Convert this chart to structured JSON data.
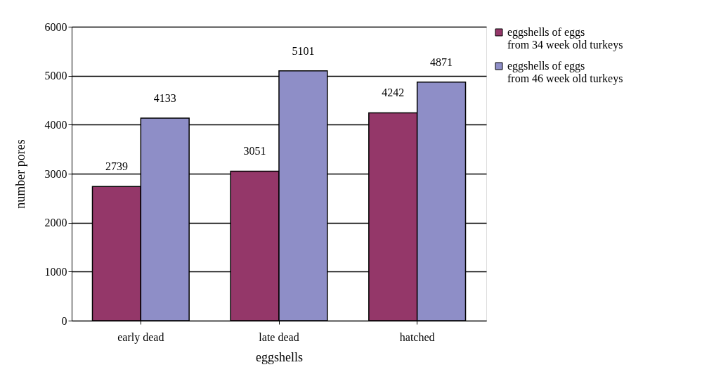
{
  "chart_data": {
    "type": "bar",
    "xlabel": "eggshells",
    "ylabel": "number pores",
    "categories": [
      "early dead",
      "late dead",
      "hatched"
    ],
    "series": [
      {
        "name": "eggshells of eggs\nfrom 34 week old turkeys",
        "color": "#943769",
        "values": [
          2739,
          3051,
          4242
        ]
      },
      {
        "name": "eggshells of eggs\nfrom 46 week old turkeys",
        "color": "#8e8ec7",
        "values": [
          4133,
          5101,
          4871
        ]
      }
    ],
    "ylim": [
      0,
      6000
    ],
    "yticks": [
      0,
      1000,
      2000,
      3000,
      4000,
      5000,
      6000
    ],
    "grid": "y",
    "legend": "right",
    "data_labels": true
  }
}
